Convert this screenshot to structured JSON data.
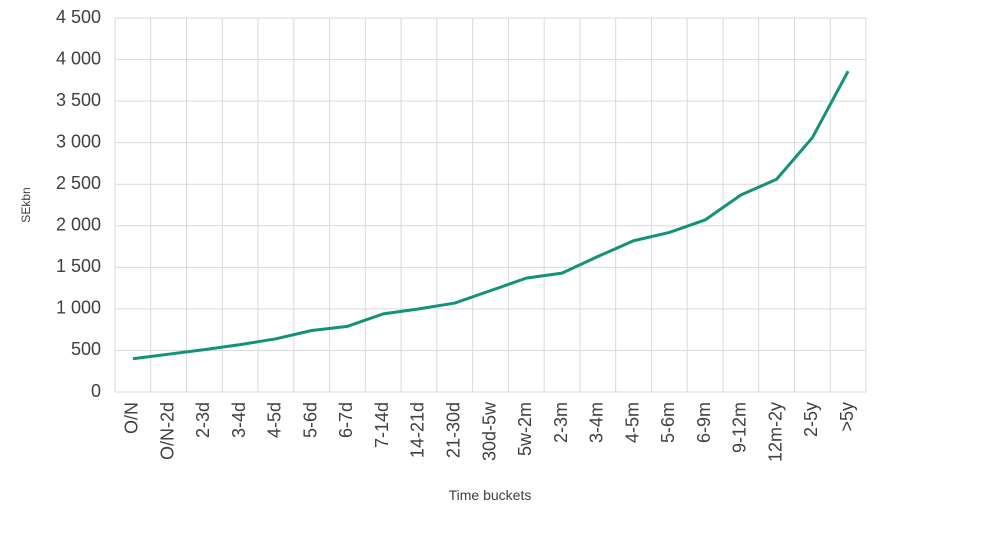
{
  "chart_data": {
    "type": "line",
    "xlabel": "Time buckets",
    "ylabel": "SEkbn",
    "categories": [
      "O/N",
      "O/N-2d",
      "2-3d",
      "3-4d",
      "4-5d",
      "5-6d",
      "6-7d",
      "7-14d",
      "14-21d",
      "21-30d",
      "30d-5w",
      "5w-2m",
      "2-3m",
      "3-4m",
      "4-5m",
      "5-6m",
      "6-9m",
      "9-12m",
      "12m-2y",
      "2-5y",
      ">5y"
    ],
    "series": [
      {
        "name": "SEkbn",
        "color": "#14917a",
        "values": [
          400,
          455,
          510,
          570,
          640,
          740,
          790,
          940,
          1000,
          1070,
          1220,
          1370,
          1430,
          1630,
          1820,
          1920,
          2070,
          2370,
          2560,
          3060,
          3860
        ]
      }
    ],
    "ylim": [
      0,
      4500
    ],
    "yticks": [
      0,
      500,
      {
        "value": 1000,
        "label": "1 000"
      },
      {
        "value": 1500,
        "label": "1 500"
      },
      {
        "value": 2000,
        "label": "2 000"
      },
      {
        "value": 2500,
        "label": "2 500"
      },
      {
        "value": 3000,
        "label": "3 000"
      },
      {
        "value": 3500,
        "label": "3 500"
      },
      {
        "value": 4000,
        "label": "4 000"
      },
      {
        "value": 4500,
        "label": "4 500"
      }
    ],
    "grid": true
  }
}
